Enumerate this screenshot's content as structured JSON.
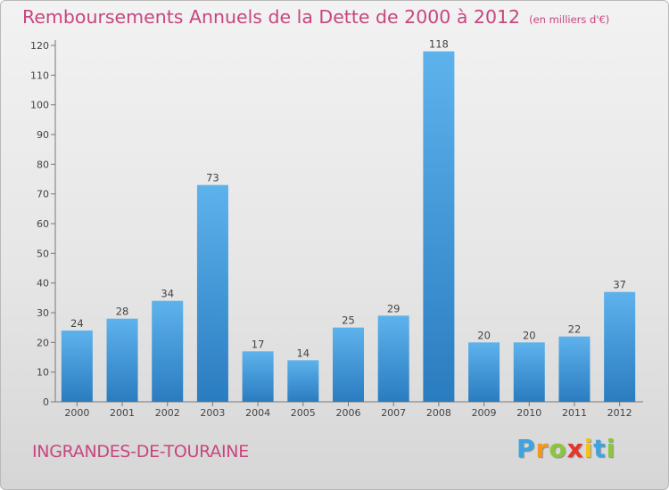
{
  "title": "Remboursements Annuels de la Dette de 2000 à 2012",
  "unit": "(en milliers d'€)",
  "commune": "INGRANDES-DE-TOURAINE",
  "logo": {
    "letters": [
      "P",
      "r",
      "o",
      "x",
      "i",
      "t",
      "i"
    ],
    "colors": [
      "#3fa3e0",
      "#f29a1e",
      "#8cc63f",
      "#e8332a",
      "#f2c318",
      "#3fa3e0",
      "#8cc63f"
    ]
  },
  "chart_data": {
    "type": "bar",
    "title": "Remboursements Annuels de la Dette de 2000 à 2012",
    "categories": [
      "2000",
      "2001",
      "2002",
      "2003",
      "2004",
      "2005",
      "2006",
      "2007",
      "2008",
      "2009",
      "2010",
      "2011",
      "2012"
    ],
    "values": [
      24,
      28,
      34,
      73,
      17,
      14,
      25,
      29,
      118,
      20,
      20,
      22,
      37
    ],
    "xlabel": "",
    "ylabel": "",
    "ylim": [
      0,
      120
    ],
    "yticks": [
      0,
      10,
      20,
      30,
      40,
      50,
      60,
      70,
      80,
      90,
      100,
      110,
      120
    ],
    "grid": false,
    "bar_color": "#4d9fdc"
  }
}
